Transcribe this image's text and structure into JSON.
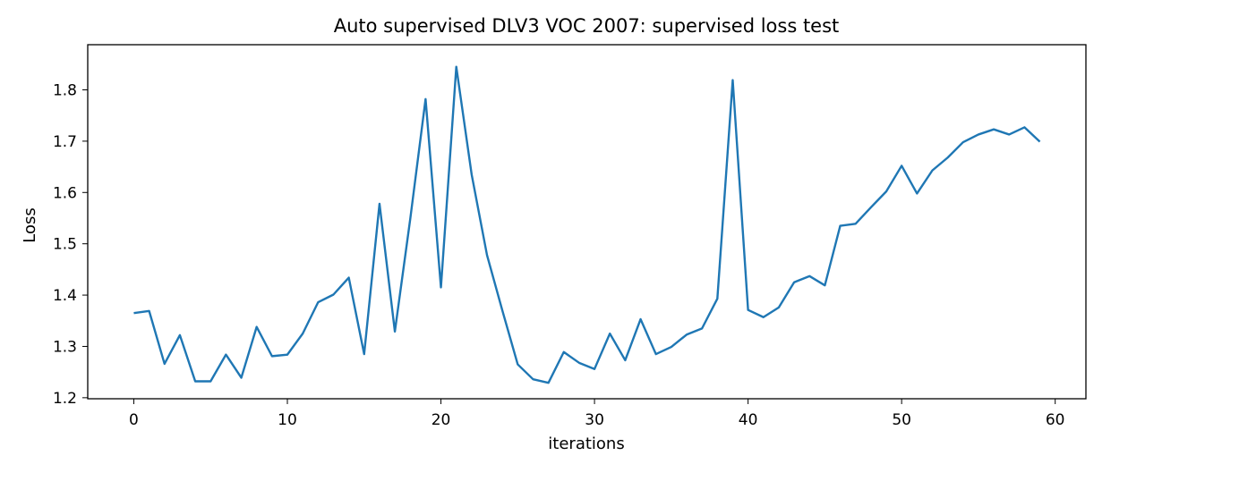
{
  "chart_data": {
    "type": "line",
    "title": "Auto supervised DLV3 VOC 2007: supervised loss test",
    "xlabel": "iterations",
    "ylabel": "Loss",
    "xlim": [
      -3,
      62
    ],
    "ylim": [
      1.198,
      1.888
    ],
    "xticks": [
      0,
      10,
      20,
      30,
      40,
      50,
      60
    ],
    "yticks": [
      1.2,
      1.3,
      1.4,
      1.5,
      1.6,
      1.7,
      1.8
    ],
    "grid": false,
    "series": [
      {
        "color": "#1f77b4",
        "x": [
          0,
          1,
          2,
          3,
          4,
          5,
          6,
          7,
          8,
          9,
          10,
          11,
          12,
          13,
          14,
          15,
          16,
          17,
          18,
          19,
          20,
          21,
          22,
          23,
          24,
          25,
          26,
          27,
          28,
          29,
          30,
          31,
          32,
          33,
          34,
          35,
          36,
          37,
          38,
          39,
          40,
          41,
          42,
          43,
          44,
          45,
          46,
          47,
          48,
          49,
          50,
          51,
          52,
          53,
          54,
          55,
          56,
          57,
          58,
          59
        ],
        "values": [
          1.365,
          1.369,
          1.266,
          1.322,
          1.232,
          1.232,
          1.284,
          1.239,
          1.338,
          1.281,
          1.284,
          1.325,
          1.386,
          1.401,
          1.434,
          1.285,
          1.578,
          1.329,
          1.548,
          1.782,
          1.415,
          1.845,
          1.635,
          1.478,
          1.37,
          1.265,
          1.236,
          1.229,
          1.289,
          1.268,
          1.256,
          1.325,
          1.273,
          1.353,
          1.285,
          1.299,
          1.323,
          1.335,
          1.393,
          1.819,
          1.371,
          1.357,
          1.376,
          1.425,
          1.437,
          1.419,
          1.535,
          1.539,
          1.571,
          1.602,
          1.652,
          1.598,
          1.643,
          1.668,
          1.698,
          1.713,
          1.723,
          1.713,
          1.727,
          1.699
        ]
      }
    ]
  }
}
